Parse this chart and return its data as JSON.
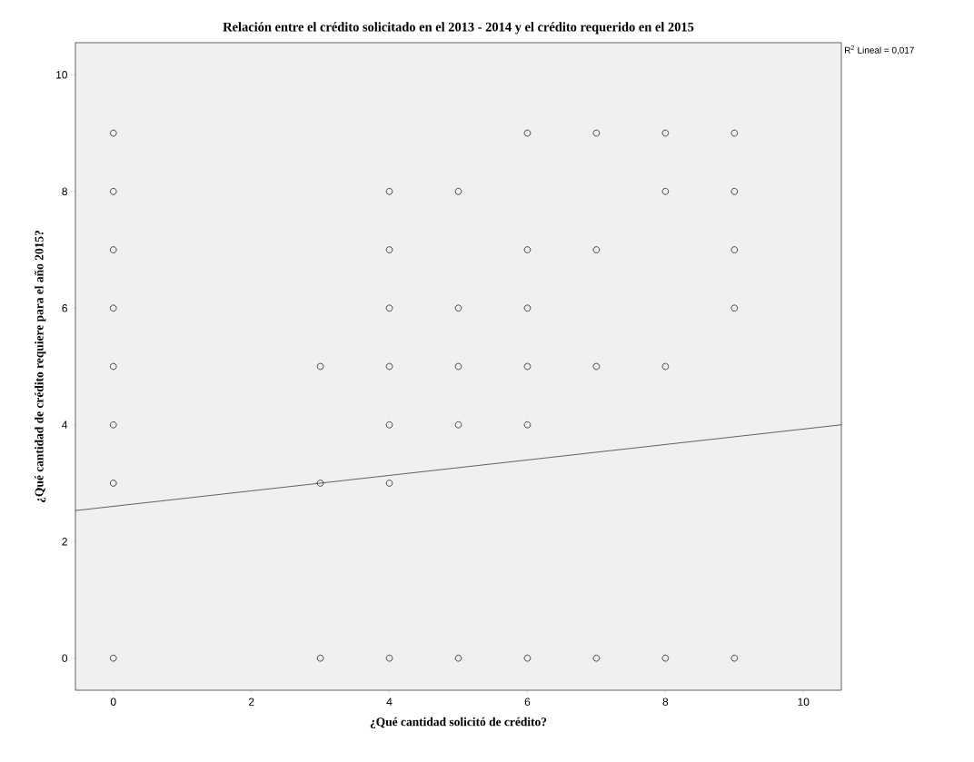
{
  "chart_data": {
    "type": "scatter",
    "title": "Relación entre el crédito solicitado en el 2013 - 2014 y el crédito requerido en el 2015",
    "xlabel": "¿Qué cantidad solicitó de crédito?",
    "ylabel": "¿Qué cantidad de crédito requiere para el año 2015?",
    "annotations": [
      "R$^{2}$ Lineal = 0,017"
    ],
    "xlim": [
      -0.55,
      10.55
    ],
    "ylim": [
      -0.55,
      10.55
    ],
    "xticks": [
      0,
      2,
      4,
      6,
      8,
      10
    ],
    "yticks": [
      0,
      2,
      4,
      6,
      8,
      10
    ],
    "grid": false,
    "series": [
      {
        "marker": "circle",
        "color": "#333333",
        "x": [
          0,
          0,
          0,
          0,
          0,
          0,
          0,
          0,
          3,
          3,
          3,
          4,
          4,
          4,
          4,
          4,
          4,
          4,
          5,
          5,
          5,
          5,
          5,
          6,
          6,
          6,
          6,
          6,
          6,
          7,
          7,
          7,
          7,
          8,
          8,
          8,
          8,
          9,
          9,
          9,
          9,
          9
        ],
        "values": [
          9,
          8,
          7,
          6,
          5,
          4,
          3,
          0,
          5,
          3,
          0,
          8,
          7,
          6,
          5,
          4,
          3,
          0,
          8,
          6,
          5,
          4,
          0,
          9,
          7,
          6,
          5,
          4,
          0,
          9,
          7,
          5,
          0,
          9,
          8,
          5,
          0,
          9,
          8,
          7,
          6,
          0
        ]
      },
      {
        "type": "line",
        "color": "#000000",
        "x": [
          -0.55,
          10.55
        ],
        "values": [
          2.53,
          4.0
        ]
      }
    ]
  }
}
